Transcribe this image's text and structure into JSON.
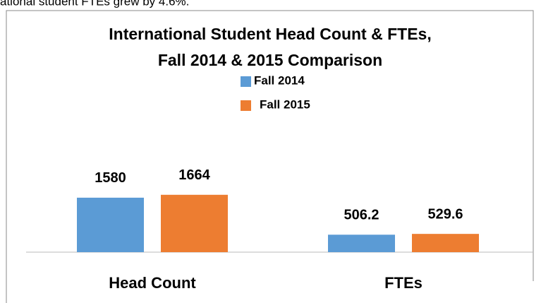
{
  "caption": "ational student FTEs grew by 4.6%.",
  "chart_data": {
    "type": "bar",
    "title": [
      "International Student Head Count & FTEs,",
      "Fall 2014 & 2015 Comparison"
    ],
    "categories": [
      "Head Count",
      "FTEs"
    ],
    "series": [
      {
        "name": "Fall 2014",
        "color": "#5b9bd5",
        "values": [
          1580,
          506.2
        ]
      },
      {
        "name": "Fall 2015",
        "color": "#ed7d31",
        "values": [
          1664,
          529.6
        ]
      }
    ]
  }
}
